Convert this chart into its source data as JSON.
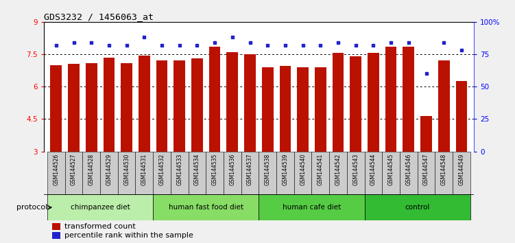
{
  "title": "GDS3232 / 1456063_at",
  "samples": [
    "GSM144526",
    "GSM144527",
    "GSM144528",
    "GSM144529",
    "GSM144530",
    "GSM144531",
    "GSM144532",
    "GSM144533",
    "GSM144534",
    "GSM144535",
    "GSM144536",
    "GSM144537",
    "GSM144538",
    "GSM144539",
    "GSM144540",
    "GSM144541",
    "GSM144542",
    "GSM144543",
    "GSM144544",
    "GSM144545",
    "GSM144546",
    "GSM144547",
    "GSM144548",
    "GSM144549"
  ],
  "transformed_count": [
    7.0,
    7.05,
    7.1,
    7.35,
    7.1,
    7.45,
    7.2,
    7.2,
    7.3,
    7.85,
    7.6,
    7.5,
    6.9,
    6.95,
    6.9,
    6.9,
    7.55,
    7.4,
    7.55,
    7.85,
    7.85,
    4.65,
    7.2,
    6.25
  ],
  "percentile_rank": [
    82,
    84,
    84,
    82,
    82,
    88,
    82,
    82,
    82,
    84,
    88,
    84,
    82,
    82,
    82,
    82,
    84,
    82,
    82,
    84,
    84,
    60,
    84,
    78
  ],
  "groups": [
    {
      "label": "chimpanzee diet",
      "start": 0,
      "end": 6,
      "color": "#bbeeaa"
    },
    {
      "label": "human fast food diet",
      "start": 6,
      "end": 12,
      "color": "#88dd66"
    },
    {
      "label": "human cafe diet",
      "start": 12,
      "end": 18,
      "color": "#55cc44"
    },
    {
      "label": "control",
      "start": 18,
      "end": 24,
      "color": "#33bb33"
    }
  ],
  "ylim_left": [
    3,
    9
  ],
  "ylim_right": [
    0,
    100
  ],
  "yticks_left": [
    3,
    4.5,
    6,
    7.5,
    9
  ],
  "yticks_right": [
    0,
    25,
    50,
    75,
    100
  ],
  "bar_color": "#bb1100",
  "dot_color": "#2222cc",
  "bar_width": 0.65,
  "protocol_label": "protocol",
  "legend_bar_label": "transformed count",
  "legend_dot_label": "percentile rank within the sample",
  "background_color": "#f0f0f0",
  "plot_bg_color": "#ffffff",
  "sample_box_color": "#cccccc",
  "sample_box_alt_color": "#bbbbbb"
}
